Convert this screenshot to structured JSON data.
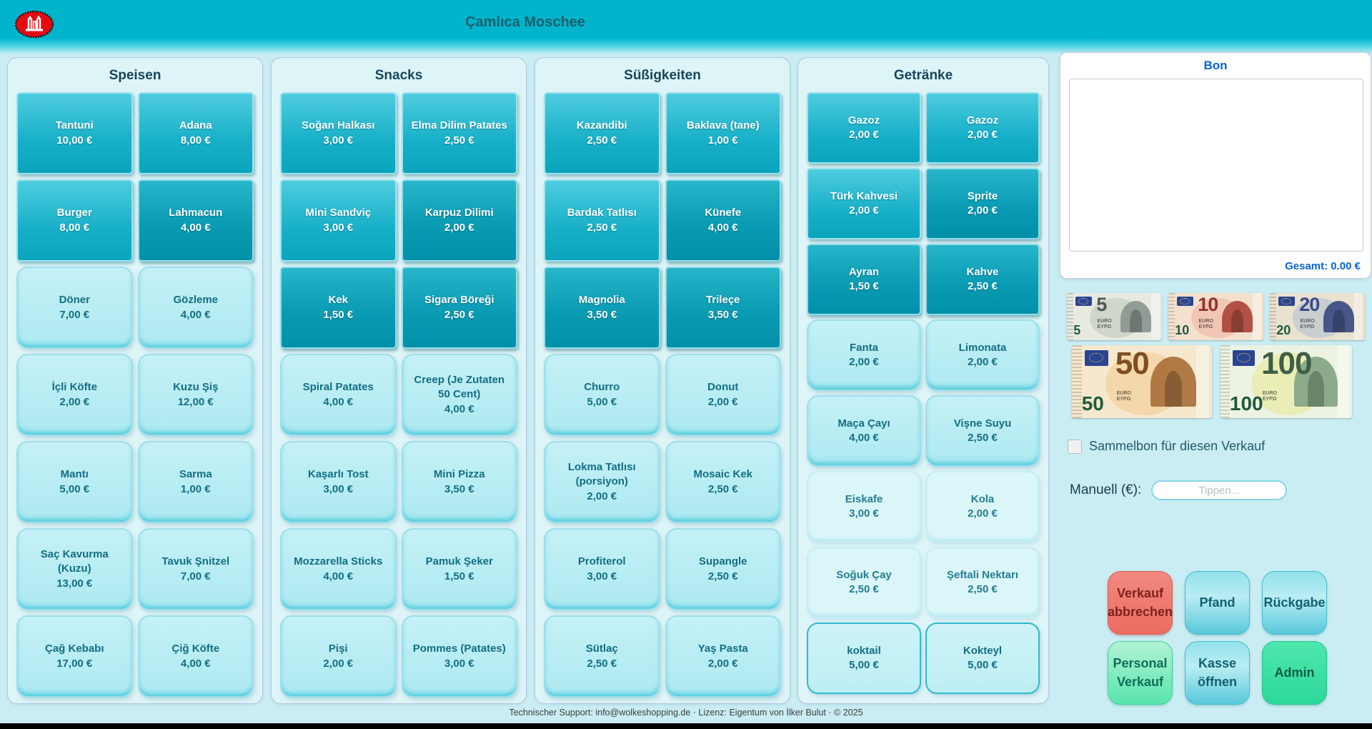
{
  "header": {
    "title": "Çamlıca Moschee",
    "logo": "DITIB"
  },
  "colors": {
    "header_cyan": "#00b4cc",
    "panel_bg": "#def5f8",
    "page_bg": "#c9edf3",
    "button_mid": "#17b0c8",
    "button_deep": "#0a9cb4",
    "button_light": "#aee9f1",
    "bon_blue": "#0a64d0",
    "danger_red": "#ec6c62",
    "mint_green": "#2cd89a",
    "text_teal": "#136e83"
  },
  "categories": [
    {
      "name": "Speisen",
      "items": [
        {
          "label": "Tantuni",
          "price": "10,00 €",
          "shade": "mid"
        },
        {
          "label": "Adana",
          "price": "8,00 €",
          "shade": "mid"
        },
        {
          "label": "Burger",
          "price": "8,00 €",
          "shade": "mid"
        },
        {
          "label": "Lahmacun",
          "price": "4,00 €",
          "shade": "deep"
        },
        {
          "label": "Döner",
          "price": "7,00 €",
          "shade": "light"
        },
        {
          "label": "Gözleme",
          "price": "4,00 €",
          "shade": "light"
        },
        {
          "label": "İçli Köfte",
          "price": "2,00 €",
          "shade": "light"
        },
        {
          "label": "Kuzu Şiş",
          "price": "12,00 €",
          "shade": "light"
        },
        {
          "label": "Mantı",
          "price": "5,00 €",
          "shade": "light"
        },
        {
          "label": "Sarma",
          "price": "1,00 €",
          "shade": "light"
        },
        {
          "label": "Saç Kavurma (Kuzu)",
          "price": "13,00 €",
          "shade": "light"
        },
        {
          "label": "Tavuk Şnitzel",
          "price": "7,00 €",
          "shade": "light"
        },
        {
          "label": "Çağ Kebabı",
          "price": "17,00 €",
          "shade": "light"
        },
        {
          "label": "Çiğ Köfte",
          "price": "4,00 €",
          "shade": "light"
        }
      ]
    },
    {
      "name": "Snacks",
      "items": [
        {
          "label": "Soğan Halkası",
          "price": "3,00 €",
          "shade": "mid"
        },
        {
          "label": "Elma Dilim Patates",
          "price": "2,50 €",
          "shade": "mid"
        },
        {
          "label": "Mini Sandviç",
          "price": "3,00 €",
          "shade": "mid"
        },
        {
          "label": "Karpuz Dilimi",
          "price": "2,00 €",
          "shade": "deep"
        },
        {
          "label": "Kek",
          "price": "1,50 €",
          "shade": "deep"
        },
        {
          "label": "Sigara Böreği",
          "price": "2,50 €",
          "shade": "deep"
        },
        {
          "label": "Spiral Patates",
          "price": "4,00 €",
          "shade": "light"
        },
        {
          "label": "Creep (Je Zutaten 50 Cent)",
          "price": "4,00 €",
          "shade": "light"
        },
        {
          "label": "Kaşarlı Tost",
          "price": "3,00 €",
          "shade": "light"
        },
        {
          "label": "Mini Pizza",
          "price": "3,50 €",
          "shade": "light"
        },
        {
          "label": "Mozzarella Sticks",
          "price": "4,00 €",
          "shade": "light"
        },
        {
          "label": "Pamuk Şeker",
          "price": "1,50 €",
          "shade": "light"
        },
        {
          "label": "Pişi",
          "price": "2,00 €",
          "shade": "light"
        },
        {
          "label": "Pommes (Patates)",
          "price": "3,00 €",
          "shade": "light"
        }
      ]
    },
    {
      "name": "Süßigkeiten",
      "items": [
        {
          "label": "Kazandibi",
          "price": "2,50 €",
          "shade": "mid"
        },
        {
          "label": "Baklava (tane)",
          "price": "1,00 €",
          "shade": "mid"
        },
        {
          "label": "Bardak Tatlısı",
          "price": "2,50 €",
          "shade": "mid"
        },
        {
          "label": "Künefe",
          "price": "4,00 €",
          "shade": "deep"
        },
        {
          "label": "Magnolia",
          "price": "3,50 €",
          "shade": "deep"
        },
        {
          "label": "Trileçe",
          "price": "3,50 €",
          "shade": "deep"
        },
        {
          "label": "Churro",
          "price": "5,00 €",
          "shade": "light"
        },
        {
          "label": "Donut",
          "price": "2,00 €",
          "shade": "light"
        },
        {
          "label": "Lokma Tatlısı (porsiyon)",
          "price": "2,00 €",
          "shade": "light"
        },
        {
          "label": "Mosaic Kek",
          "price": "2,50 €",
          "shade": "light"
        },
        {
          "label": "Profiterol",
          "price": "3,00 €",
          "shade": "light"
        },
        {
          "label": "Supangle",
          "price": "2,50 €",
          "shade": "light"
        },
        {
          "label": "Sütlaç",
          "price": "2,50 €",
          "shade": "light"
        },
        {
          "label": "Yaş Pasta",
          "price": "2,00 €",
          "shade": "light"
        }
      ]
    },
    {
      "name": "Getränke",
      "items": [
        {
          "label": "Gazoz",
          "price": "2,00 €",
          "shade": "mid"
        },
        {
          "label": "Gazoz",
          "price": "2,00 €",
          "shade": "mid"
        },
        {
          "label": "Türk Kahvesi",
          "price": "2,00 €",
          "shade": "mid"
        },
        {
          "label": "Sprite",
          "price": "2,00 €",
          "shade": "deep"
        },
        {
          "label": "Ayran",
          "price": "1,50 €",
          "shade": "deep"
        },
        {
          "label": "Kahve",
          "price": "2,50 €",
          "shade": "deep"
        },
        {
          "label": "Fanta",
          "price": "2,00 €",
          "shade": "light"
        },
        {
          "label": "Limonata",
          "price": "2,00 €",
          "shade": "light"
        },
        {
          "label": "Maça Çayı",
          "price": "4,00 €",
          "shade": "light"
        },
        {
          "label": "Vişne Suyu",
          "price": "2,50 €",
          "shade": "light"
        },
        {
          "label": "Eiskafe",
          "price": "3,00 €",
          "shade": "lighter"
        },
        {
          "label": "Kola",
          "price": "2,00 €",
          "shade": "lighter"
        },
        {
          "label": "Soğuk Çay",
          "price": "2,50 €",
          "shade": "lighter"
        },
        {
          "label": "Şeftali Nektarı",
          "price": "2,50 €",
          "shade": "lighter"
        },
        {
          "label": "koktail",
          "price": "5,00 €",
          "shade": "outline"
        },
        {
          "label": "Kokteyl",
          "price": "5,00 €",
          "shade": "outline"
        }
      ]
    }
  ],
  "bon": {
    "title": "Bon",
    "total": "Gesamt: 0.00 €",
    "items": []
  },
  "banknotes": [
    {
      "value": "5"
    },
    {
      "value": "10"
    },
    {
      "value": "20"
    },
    {
      "value": "50"
    },
    {
      "value": "100"
    }
  ],
  "options": {
    "sammelbon_label": "Sammelbon für diesen Verkauf",
    "sammelbon_checked": false
  },
  "manual": {
    "label": "Manuell (€):",
    "placeholder": "Tippen...",
    "value": ""
  },
  "actions": [
    {
      "label": "Verkauf abbrechen",
      "style": "danger"
    },
    {
      "label": "Pfand",
      "style": "cyan"
    },
    {
      "label": "Rückgabe",
      "style": "cyan"
    },
    {
      "label": "Personal Verkauf",
      "style": "mint-light"
    },
    {
      "label": "Kasse öffnen",
      "style": "cyan"
    },
    {
      "label": "Admin",
      "style": "mint"
    }
  ],
  "footer": {
    "text": "Technischer Support: info@wolkeshopping.de · Lizenz: Eigentum von İlker Bulut · © 2025"
  }
}
